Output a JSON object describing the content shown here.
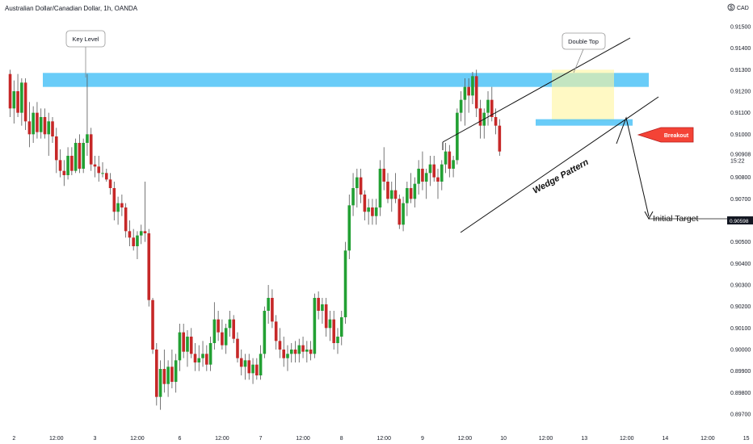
{
  "chart_data": {
    "type": "candlestick",
    "title": "Australian Dollar/Canadian Dollar, 1h, OANDA",
    "currency": "CAD",
    "ylim": [
      0.8968,
      0.916
    ],
    "y_ticks": [
      "0.91500",
      "0.91400",
      "0.91300",
      "0.91200",
      "0.91100",
      "0.91000",
      "0.90908",
      "0.90800",
      "0.90700",
      "0.90598",
      "0.90500",
      "0.90400",
      "0.90300",
      "0.90200",
      "0.90100",
      "0.90000",
      "0.89900",
      "0.89800",
      "0.89700"
    ],
    "current_price": "0.90908",
    "countdown": "15:22",
    "target_price": "0.90598",
    "x_ticks": [
      {
        "label": "2",
        "i": 3
      },
      {
        "label": "12:00",
        "i": 14
      },
      {
        "label": "3",
        "i": 24
      },
      {
        "label": "12:00",
        "i": 35
      },
      {
        "label": "6",
        "i": 46
      },
      {
        "label": "12:00",
        "i": 57
      },
      {
        "label": "7",
        "i": 67
      },
      {
        "label": "12:00",
        "i": 78
      },
      {
        "label": "8",
        "i": 88
      },
      {
        "label": "12:00",
        "i": 99
      },
      {
        "label": "9",
        "i": 109
      },
      {
        "label": "12:00",
        "i": 120
      },
      {
        "label": "10",
        "i": 130
      },
      {
        "label": "12:00",
        "i": 141
      },
      {
        "label": "13",
        "i": 151
      },
      {
        "label": "12:00",
        "i": 162
      },
      {
        "label": "14",
        "i": 172
      },
      {
        "label": "12:00",
        "i": 183
      },
      {
        "label": "15",
        "i": 193
      }
    ],
    "candle_spacing_bars": 1,
    "candles": [
      [
        0.9128,
        0.913,
        0.9108,
        0.9112
      ],
      [
        0.9112,
        0.9125,
        0.9105,
        0.912
      ],
      [
        0.912,
        0.9128,
        0.9108,
        0.911
      ],
      [
        0.911,
        0.9126,
        0.9104,
        0.9124
      ],
      [
        0.9124,
        0.9126,
        0.9102,
        0.9106
      ],
      [
        0.9106,
        0.9115,
        0.9094,
        0.91
      ],
      [
        0.91,
        0.9113,
        0.9096,
        0.911
      ],
      [
        0.911,
        0.9115,
        0.9098,
        0.9101
      ],
      [
        0.9101,
        0.9112,
        0.9098,
        0.9108
      ],
      [
        0.9108,
        0.9112,
        0.9098,
        0.91
      ],
      [
        0.91,
        0.911,
        0.909,
        0.9106
      ],
      [
        0.9106,
        0.9108,
        0.9096,
        0.9099
      ],
      [
        0.9099,
        0.9103,
        0.9082,
        0.9088
      ],
      [
        0.9088,
        0.9093,
        0.908,
        0.9083
      ],
      [
        0.9083,
        0.9088,
        0.9076,
        0.9081
      ],
      [
        0.9081,
        0.9094,
        0.9079,
        0.909
      ],
      [
        0.909,
        0.9094,
        0.9081,
        0.9083
      ],
      [
        0.9083,
        0.9098,
        0.9082,
        0.9096
      ],
      [
        0.9096,
        0.91,
        0.9082,
        0.9084
      ],
      [
        0.9084,
        0.9098,
        0.9082,
        0.9096
      ],
      [
        0.9096,
        0.9128,
        0.909,
        0.91
      ],
      [
        0.91,
        0.9103,
        0.9083,
        0.9086
      ],
      [
        0.9086,
        0.909,
        0.908,
        0.9085
      ],
      [
        0.9085,
        0.909,
        0.9078,
        0.9082
      ],
      [
        0.9082,
        0.9087,
        0.908,
        0.9082
      ],
      [
        0.9082,
        0.9084,
        0.9078,
        0.9079
      ],
      [
        0.9079,
        0.9082,
        0.9072,
        0.9075
      ],
      [
        0.9075,
        0.9078,
        0.906,
        0.9064
      ],
      [
        0.9064,
        0.9071,
        0.9058,
        0.9068
      ],
      [
        0.9068,
        0.9072,
        0.9062,
        0.9066
      ],
      [
        0.9066,
        0.9068,
        0.9052,
        0.9055
      ],
      [
        0.9055,
        0.906,
        0.9048,
        0.9052
      ],
      [
        0.9052,
        0.9056,
        0.9046,
        0.9048
      ],
      [
        0.9048,
        0.9055,
        0.9042,
        0.9053
      ],
      [
        0.9053,
        0.9058,
        0.9049,
        0.9055
      ],
      [
        0.9055,
        0.9078,
        0.905,
        0.9054
      ],
      [
        0.9054,
        0.9056,
        0.902,
        0.9023
      ],
      [
        0.9023,
        0.9024,
        0.8998,
        0.9
      ],
      [
        0.9,
        0.9003,
        0.8974,
        0.8978
      ],
      [
        0.8978,
        0.8995,
        0.8972,
        0.8991
      ],
      [
        0.8991,
        0.9,
        0.898,
        0.8984
      ],
      [
        0.8984,
        0.8995,
        0.8978,
        0.8992
      ],
      [
        0.8992,
        0.9,
        0.8982,
        0.8985
      ],
      [
        0.8985,
        0.8998,
        0.898,
        0.8995
      ],
      [
        0.8995,
        0.9012,
        0.899,
        0.9008
      ],
      [
        0.9008,
        0.9012,
        0.8996,
        0.8999
      ],
      [
        0.8999,
        0.9009,
        0.8992,
        0.9006
      ],
      [
        0.9006,
        0.901,
        0.8996,
        0.8998
      ],
      [
        0.8998,
        0.9003,
        0.899,
        0.8994
      ],
      [
        0.8994,
        0.9002,
        0.899,
        0.8996
      ],
      [
        0.8996,
        0.9004,
        0.8992,
        0.8998
      ],
      [
        0.8998,
        0.9002,
        0.899,
        0.8993
      ],
      [
        0.8993,
        0.9006,
        0.899,
        0.9003
      ],
      [
        0.9003,
        0.9022,
        0.9,
        0.9014
      ],
      [
        0.9014,
        0.9018,
        0.9004,
        0.9008
      ],
      [
        0.9008,
        0.9014,
        0.9,
        0.9002
      ],
      [
        0.9002,
        0.9012,
        0.8998,
        0.901
      ],
      [
        0.901,
        0.9018,
        0.9006,
        0.9014
      ],
      [
        0.9014,
        0.9016,
        0.9003,
        0.9005
      ],
      [
        0.9005,
        0.9008,
        0.8994,
        0.8996
      ],
      [
        0.8996,
        0.9,
        0.8988,
        0.8992
      ],
      [
        0.8992,
        0.8998,
        0.8986,
        0.8995
      ],
      [
        0.8995,
        0.8998,
        0.8986,
        0.8989
      ],
      [
        0.8989,
        0.8996,
        0.8984,
        0.8993
      ],
      [
        0.8993,
        0.8996,
        0.8986,
        0.8988
      ],
      [
        0.8988,
        0.9002,
        0.8986,
        0.8998
      ],
      [
        0.8998,
        0.902,
        0.8996,
        0.9018
      ],
      [
        0.9018,
        0.903,
        0.9012,
        0.9024
      ],
      [
        0.9024,
        0.9028,
        0.901,
        0.9013
      ],
      [
        0.9013,
        0.9016,
        0.9,
        0.9004
      ],
      [
        0.9004,
        0.901,
        0.8996,
        0.9
      ],
      [
        0.9,
        0.9006,
        0.8992,
        0.8996
      ],
      [
        0.8996,
        0.9002,
        0.899,
        0.8998
      ],
      [
        0.8998,
        0.9003,
        0.8994,
        0.9
      ],
      [
        0.9,
        0.9004,
        0.8994,
        0.8998
      ],
      [
        0.8998,
        0.9005,
        0.8994,
        0.9002
      ],
      [
        0.9002,
        0.9006,
        0.8996,
        0.8999
      ],
      [
        0.8999,
        0.9004,
        0.8994,
        0.9
      ],
      [
        0.9,
        0.9004,
        0.8995,
        0.8998
      ],
      [
        0.8998,
        0.9026,
        0.8996,
        0.9024
      ],
      [
        0.9024,
        0.9027,
        0.9014,
        0.9018
      ],
      [
        0.9018,
        0.9024,
        0.9012,
        0.9021
      ],
      [
        0.9021,
        0.9024,
        0.9006,
        0.901
      ],
      [
        0.901,
        0.9018,
        0.9004,
        0.9014
      ],
      [
        0.9014,
        0.9018,
        0.9,
        0.9003
      ],
      [
        0.9003,
        0.901,
        0.8998,
        0.9006
      ],
      [
        0.9006,
        0.9018,
        0.9002,
        0.9015
      ],
      [
        0.9015,
        0.905,
        0.9012,
        0.9046
      ],
      [
        0.9046,
        0.9072,
        0.9042,
        0.9067
      ],
      [
        0.9067,
        0.9082,
        0.9062,
        0.9075
      ],
      [
        0.9075,
        0.9084,
        0.9066,
        0.908
      ],
      [
        0.908,
        0.9084,
        0.9068,
        0.9072
      ],
      [
        0.9072,
        0.9074,
        0.906,
        0.9064
      ],
      [
        0.9064,
        0.907,
        0.9058,
        0.9066
      ],
      [
        0.9066,
        0.907,
        0.9058,
        0.9062
      ],
      [
        0.9062,
        0.907,
        0.9058,
        0.9066
      ],
      [
        0.9066,
        0.9088,
        0.9062,
        0.9084
      ],
      [
        0.9084,
        0.9094,
        0.9074,
        0.9078
      ],
      [
        0.9078,
        0.9082,
        0.9068,
        0.907
      ],
      [
        0.907,
        0.9078,
        0.9064,
        0.9074
      ],
      [
        0.9074,
        0.9082,
        0.9068,
        0.907
      ],
      [
        0.907,
        0.9072,
        0.9056,
        0.9058
      ],
      [
        0.9058,
        0.9071,
        0.9055,
        0.9068
      ],
      [
        0.9068,
        0.9078,
        0.9062,
        0.9075
      ],
      [
        0.9075,
        0.9082,
        0.9068,
        0.907
      ],
      [
        0.907,
        0.908,
        0.9066,
        0.9077
      ],
      [
        0.9077,
        0.9088,
        0.9072,
        0.9084
      ],
      [
        0.9084,
        0.9092,
        0.9074,
        0.9078
      ],
      [
        0.9078,
        0.9084,
        0.907,
        0.9082
      ],
      [
        0.9082,
        0.909,
        0.9076,
        0.9086
      ],
      [
        0.9086,
        0.909,
        0.9078,
        0.908
      ],
      [
        0.908,
        0.9084,
        0.907,
        0.9078
      ],
      [
        0.9078,
        0.9088,
        0.9074,
        0.9086
      ],
      [
        0.9086,
        0.9096,
        0.9082,
        0.9092
      ],
      [
        0.9092,
        0.9095,
        0.908,
        0.9084
      ],
      [
        0.9084,
        0.909,
        0.908,
        0.9088
      ],
      [
        0.9088,
        0.9112,
        0.9086,
        0.911
      ],
      [
        0.911,
        0.912,
        0.9106,
        0.9116
      ],
      [
        0.9116,
        0.9126,
        0.9104,
        0.9122
      ],
      [
        0.9122,
        0.9126,
        0.911,
        0.9118
      ],
      [
        0.9118,
        0.9129,
        0.9114,
        0.9127
      ],
      [
        0.9127,
        0.913,
        0.9108,
        0.9112
      ],
      [
        0.9112,
        0.9116,
        0.9098,
        0.9104
      ],
      [
        0.9104,
        0.9112,
        0.9098,
        0.911
      ],
      [
        0.911,
        0.912,
        0.9104,
        0.9116
      ],
      [
        0.9116,
        0.9122,
        0.9106,
        0.9108
      ],
      [
        0.9108,
        0.9112,
        0.91,
        0.9104
      ],
      [
        0.9104,
        0.9107,
        0.909,
        0.9092
      ]
    ],
    "candle_offset": 2
  },
  "annotations": {
    "key_level": "Key Level",
    "double_top": "Double Top",
    "wedge_pattern": "Wedge Pattern",
    "breakout": "Breakout",
    "initial_target": "Initial Target"
  },
  "colors": {
    "bull": "#26a69a",
    "bear": "#b71c1c",
    "bull_candle": "#22a033",
    "bear_candle": "#c62828",
    "zone": "#4fc3f7",
    "double_top_zone": "#fff59d",
    "breakout": "#f44336"
  }
}
